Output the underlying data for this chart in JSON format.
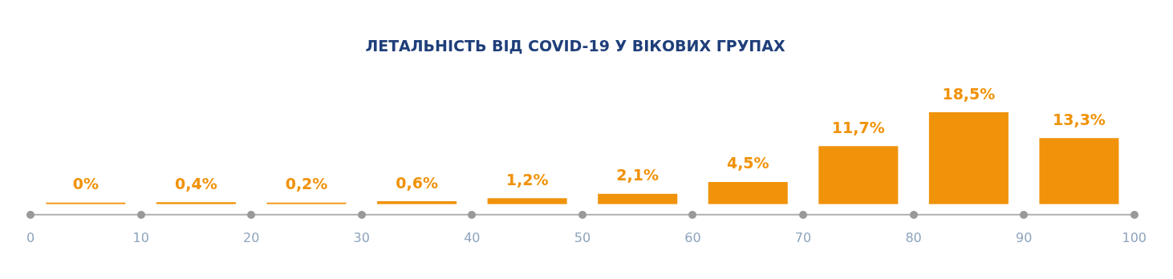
{
  "chart_data": {
    "type": "bar",
    "title": "ЛЕТАЛЬНІСТЬ ВІД COVID-19 У ВІКОВИХ ГРУПАХ",
    "x": [
      5,
      15,
      25,
      35,
      45,
      55,
      65,
      75,
      85,
      95
    ],
    "values": [
      0,
      0.4,
      0.2,
      0.6,
      1.2,
      2.1,
      4.5,
      11.7,
      18.5,
      13.3
    ],
    "value_labels": [
      "0%",
      "0,4%",
      "0,2%",
      "0,6%",
      "1,2%",
      "2,1%",
      "4,5%",
      "11,7%",
      "18,5%",
      "13,3%"
    ],
    "color": "#f0920a",
    "xlim": [
      0,
      100
    ],
    "xticks": [
      0,
      10,
      20,
      30,
      40,
      50,
      60,
      70,
      80,
      90,
      100
    ],
    "tick_labels": "x"
  }
}
